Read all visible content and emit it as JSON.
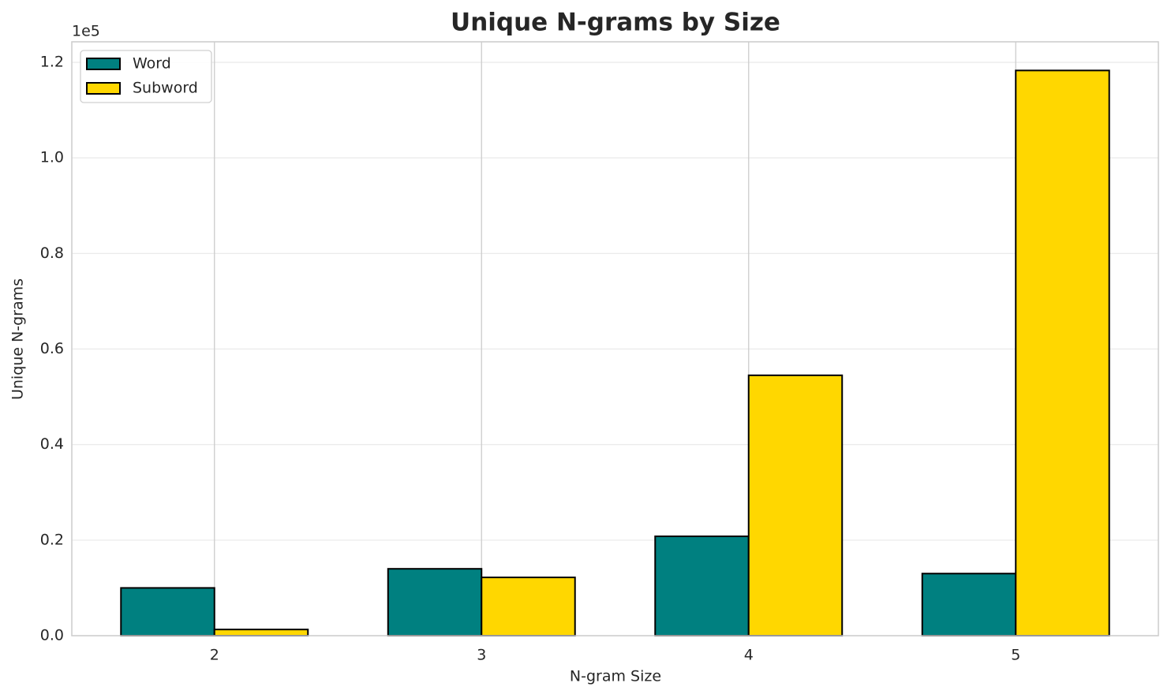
{
  "chart_data": {
    "type": "bar",
    "title": "Unique N-grams by Size",
    "x_label": "N-gram Size",
    "y_label": "Unique N-grams",
    "y_offset_label": "1e5",
    "categories": [
      "2",
      "3",
      "4",
      "5"
    ],
    "series": [
      {
        "name": "Word",
        "color": "#008080",
        "values": [
          0.1,
          0.14,
          0.208,
          0.13
        ]
      },
      {
        "name": "Subword",
        "color": "#ffd700",
        "values": [
          0.013,
          0.122,
          0.545,
          1.183
        ]
      }
    ],
    "ylim": [
      0,
      1.243
    ],
    "yticks": [
      {
        "value": 0,
        "label": "0.0"
      },
      0.2,
      0.4,
      0.6,
      0.8,
      {
        "value": 1,
        "label": "1.0"
      },
      1.2
    ],
    "grid": true,
    "legend": "upper-left"
  }
}
